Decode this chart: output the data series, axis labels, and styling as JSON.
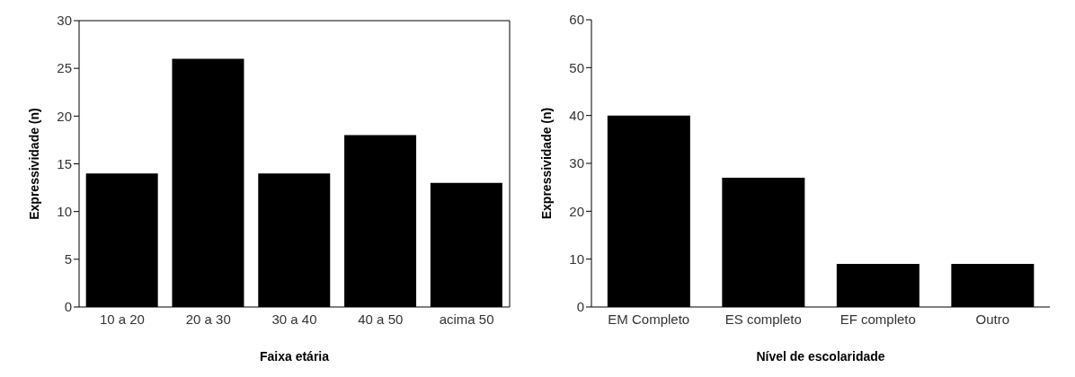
{
  "chart_data": [
    {
      "type": "bar",
      "xlabel": "Faixa etária",
      "ylabel": "Expressividade (n)",
      "categories": [
        "10 a 20",
        "20 a 30",
        "30 a 40",
        "40 a 50",
        "acima 50"
      ],
      "values": [
        14,
        26,
        14,
        18,
        13
      ],
      "color": "#000000",
      "ylim": [
        0,
        30
      ],
      "yticks": [
        0,
        5,
        10,
        15,
        20,
        25,
        30
      ],
      "grid": false,
      "legend": false
    },
    {
      "type": "bar",
      "xlabel": "Nível de escolaridade",
      "ylabel": "Expressividade (n)",
      "categories": [
        "EM Completo",
        "ES completo",
        "EF completo",
        "Outro"
      ],
      "values": [
        40,
        27,
        9,
        9
      ],
      "color": "#000000",
      "ylim": [
        0,
        60
      ],
      "yticks": [
        0,
        10,
        20,
        30,
        40,
        50,
        60
      ],
      "grid": false,
      "legend": false
    }
  ]
}
